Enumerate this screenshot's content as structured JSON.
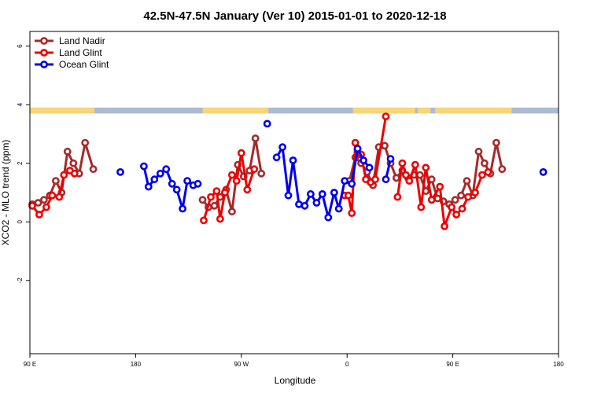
{
  "chart_data": {
    "type": "line",
    "title": "42.5N-47.5N January (Ver 10)   2015-01-01 to 2020-12-18",
    "xlabel": "Longitude",
    "ylabel": "XCO2 - MLO trend (ppm)",
    "xlim": [
      90,
      540
    ],
    "ylim": [
      -4.5,
      6.5
    ],
    "x_ticks": [
      {
        "value": 90,
        "label": "90 E"
      },
      {
        "value": 180,
        "label": "180"
      },
      {
        "value": 270,
        "label": "90 W"
      },
      {
        "value": 360,
        "label": "0"
      },
      {
        "value": 450,
        "label": "90 E"
      },
      {
        "value": 540,
        "label": "180"
      }
    ],
    "y_ticks": [
      {
        "value": -2,
        "label": "-2"
      },
      {
        "value": 0,
        "label": "0"
      },
      {
        "value": 2,
        "label": "2"
      },
      {
        "value": 4,
        "label": "4"
      },
      {
        "value": 6,
        "label": "6"
      }
    ],
    "legend_position": "top-left",
    "land_ocean_band": {
      "y_range": [
        3.7,
        3.9
      ],
      "land_color": "#f7d57a",
      "ocean_color": "#a9bcd6",
      "land_segmentsx": [
        [
          90,
          145
        ],
        [
          237,
          293
        ],
        [
          365,
          418
        ],
        [
          420,
          431
        ],
        [
          435,
          500
        ]
      ]
    },
    "series": [
      {
        "name": "Land Nadir",
        "color": "#a52a2a",
        "segments": [
          [
            [
              92,
              0.6
            ],
            [
              97,
              0.65
            ],
            [
              102,
              0.75
            ],
            [
              107,
              0.9
            ],
            [
              112,
              1.4
            ],
            [
              117,
              1.0
            ],
            [
              122,
              2.4
            ],
            [
              127,
              2.0
            ],
            [
              132,
              1.65
            ],
            [
              137,
              2.7
            ],
            [
              144,
              1.8
            ]
          ],
          [
            [
              237,
              0.75
            ],
            [
              242,
              0.5
            ],
            [
              247,
              0.55
            ],
            [
              252,
              0.85
            ],
            [
              257,
              1.1
            ],
            [
              262,
              0.35
            ],
            [
              267,
              1.95
            ],
            [
              272,
              1.55
            ],
            [
              277,
              1.75
            ],
            [
              282,
              2.85
            ],
            [
              287,
              1.65
            ]
          ],
          [
            [
              362,
              1.4
            ],
            [
              367,
              2.2
            ],
            [
              372,
              2.0
            ],
            [
              377,
              1.7
            ],
            [
              382,
              1.25
            ],
            [
              387,
              2.55
            ],
            [
              392,
              2.6
            ],
            [
              397,
              2.0
            ],
            [
              402,
              1.5
            ],
            [
              407,
              1.75
            ],
            [
              412,
              1.5
            ],
            [
              417,
              1.6
            ],
            [
              422,
              1.6
            ],
            [
              427,
              1.05
            ],
            [
              432,
              1.45
            ],
            [
              437,
              0.8
            ],
            [
              442,
              0.7
            ],
            [
              447,
              0.6
            ],
            [
              452,
              0.75
            ],
            [
              457,
              0.9
            ],
            [
              462,
              1.4
            ],
            [
              467,
              0.9
            ],
            [
              472,
              2.4
            ],
            [
              477,
              2.0
            ],
            [
              482,
              1.65
            ],
            [
              487,
              2.7
            ],
            [
              492,
              1.8
            ]
          ]
        ]
      },
      {
        "name": "Land Glint",
        "color": "#ee0000",
        "segments": [
          [
            [
              92,
              0.55
            ],
            [
              98,
              0.25
            ],
            [
              104,
              0.5
            ],
            [
              109,
              0.9
            ],
            [
              115,
              0.85
            ],
            [
              119,
              1.6
            ],
            [
              124,
              1.75
            ],
            [
              128,
              1.65
            ]
          ],
          [
            [
              238,
              0.05
            ],
            [
              244,
              0.85
            ],
            [
              249,
              1.05
            ],
            [
              252,
              0.1
            ],
            [
              256,
              1.0
            ],
            [
              262,
              1.6
            ],
            [
              266,
              1.4
            ],
            [
              270,
              2.35
            ],
            [
              275,
              1.1
            ],
            [
              281,
              1.8
            ]
          ],
          [
            [
              358,
              0.9
            ],
            [
              361,
              0.9
            ],
            [
              364,
              0.3
            ],
            [
              367,
              2.7
            ],
            [
              372,
              2.3
            ],
            [
              376,
              1.45
            ],
            [
              380,
              1.35
            ],
            [
              384,
              1.45
            ],
            [
              393,
              3.6
            ]
          ],
          [
            [
              403,
              0.85
            ],
            [
              407,
              2.0
            ],
            [
              410,
              1.6
            ],
            [
              413,
              1.4
            ],
            [
              418,
              1.95
            ],
            [
              423,
              0.5
            ],
            [
              427,
              1.85
            ],
            [
              432,
              0.75
            ],
            [
              439,
              1.2
            ],
            [
              443,
              -0.15
            ],
            [
              449,
              0.5
            ],
            [
              453,
              0.25
            ],
            [
              458,
              0.45
            ],
            [
              463,
              0.85
            ],
            [
              469,
              1.0
            ],
            [
              475,
              1.6
            ],
            [
              480,
              1.7
            ]
          ]
        ]
      },
      {
        "name": "Ocean Glint",
        "color": "#0000ee",
        "segments": [
          [
            [
              167,
              1.7
            ]
          ],
          [
            [
              187,
              1.9
            ],
            [
              191,
              1.2
            ],
            [
              196,
              1.45
            ],
            [
              201,
              1.65
            ],
            [
              206,
              1.8
            ],
            [
              211,
              1.3
            ],
            [
              215,
              1.1
            ],
            [
              220,
              0.45
            ],
            [
              224,
              1.4
            ],
            [
              229,
              1.25
            ],
            [
              233,
              1.3
            ]
          ],
          [
            [
              292,
              3.35
            ]
          ],
          [
            [
              300,
              2.2
            ],
            [
              305,
              2.55
            ],
            [
              310,
              0.9
            ],
            [
              314,
              2.1
            ],
            [
              319,
              0.6
            ],
            [
              324,
              0.55
            ],
            [
              329,
              0.95
            ],
            [
              334,
              0.65
            ],
            [
              339,
              0.95
            ],
            [
              344,
              0.15
            ],
            [
              349,
              1.0
            ],
            [
              353,
              0.45
            ],
            [
              358,
              1.4
            ],
            [
              364,
              1.3
            ],
            [
              369,
              2.5
            ],
            [
              374,
              2.1
            ],
            [
              379,
              1.85
            ]
          ],
          [
            [
              393,
              1.45
            ],
            [
              397,
              2.15
            ]
          ],
          [
            [
              527,
              1.7
            ]
          ]
        ]
      }
    ]
  }
}
